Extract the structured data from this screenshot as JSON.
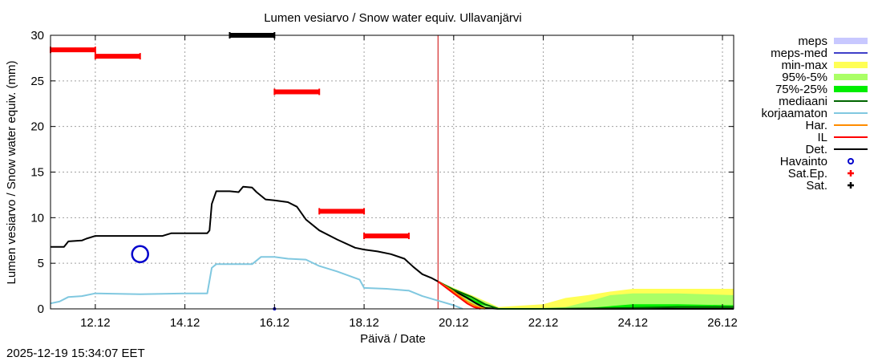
{
  "chart_data": {
    "type": "line",
    "title": "Lumen vesiarvo / Snow water equiv.  Ullavanjärvi",
    "ylabel": "Lumen vesiarvo / Snow water equiv. (mm)",
    "xlabel": "Päivä / Date",
    "timestamp": "2025-12-19 15:34:07 EET",
    "x_unit": "days since 2025-12-11 00:00",
    "xlim": [
      0,
      15.25
    ],
    "ylim": [
      0,
      30
    ],
    "yticks": [
      0,
      5,
      10,
      15,
      20,
      25,
      30
    ],
    "xticks": [
      {
        "x": 1,
        "label": "12.12"
      },
      {
        "x": 3,
        "label": "14.12"
      },
      {
        "x": 5,
        "label": "16.12"
      },
      {
        "x": 7,
        "label": "18.12"
      },
      {
        "x": 9,
        "label": "20.12"
      },
      {
        "x": 11,
        "label": "22.12"
      },
      {
        "x": 13,
        "label": "24.12"
      },
      {
        "x": 15,
        "label": "26.12"
      }
    ],
    "grid": true,
    "forecast_start_x": 8.65,
    "legend": [
      {
        "key": "meps",
        "label": "meps",
        "color": "#c8c8ff",
        "style": "band"
      },
      {
        "key": "meps_med",
        "label": "meps-med",
        "color": "#3f3fc8",
        "style": "line"
      },
      {
        "key": "minmax",
        "label": "min-max",
        "color": "#ffff55",
        "style": "band"
      },
      {
        "key": "p95_5",
        "label": "95%-5%",
        "color": "#aaff66",
        "style": "band"
      },
      {
        "key": "p75_25",
        "label": "75%-25%",
        "color": "#00ee00",
        "style": "band"
      },
      {
        "key": "median",
        "label": "mediaani",
        "color": "#006400",
        "style": "line"
      },
      {
        "key": "uncorrected",
        "label": "korjaamaton",
        "color": "#80c8e0",
        "style": "line"
      },
      {
        "key": "har",
        "label": "Har.",
        "color": "#ff8c00",
        "style": "line"
      },
      {
        "key": "il",
        "label": "IL",
        "color": "#ff0000",
        "style": "line"
      },
      {
        "key": "det",
        "label": "Det.",
        "color": "#000000",
        "style": "line"
      },
      {
        "key": "havainto",
        "label": "Havainto",
        "color": "#0000cc",
        "style": "circle"
      },
      {
        "key": "satep",
        "label": "Sat.Ep.",
        "color": "#ff0000",
        "style": "plus"
      },
      {
        "key": "sat",
        "label": "Sat.",
        "color": "#000000",
        "style": "plus"
      }
    ],
    "series": [
      {
        "name": "Det.",
        "color": "#000000",
        "x": [
          0,
          0.3,
          0.4,
          0.7,
          0.8,
          1.0,
          2.0,
          2.5,
          2.7,
          3.5,
          3.55,
          3.6,
          3.7,
          3.8,
          4.0,
          4.2,
          4.3,
          4.5,
          4.6,
          4.8,
          5.0,
          5.3,
          5.5,
          5.7,
          6.0,
          6.4,
          6.8,
          7.0,
          7.3,
          7.6,
          7.9,
          8.1,
          8.3,
          8.5,
          8.65,
          9.0,
          9.3,
          9.5,
          9.7,
          10.0,
          11.0,
          12.0,
          13.0,
          14.0,
          15.25
        ],
        "y": [
          6.8,
          6.8,
          7.4,
          7.5,
          7.7,
          8.0,
          8.0,
          8.0,
          8.3,
          8.3,
          8.6,
          11.5,
          12.9,
          12.9,
          12.9,
          12.8,
          13.4,
          13.3,
          12.8,
          12.0,
          11.9,
          11.7,
          11.2,
          9.8,
          8.6,
          7.6,
          6.7,
          6.5,
          6.3,
          6.0,
          5.5,
          4.6,
          3.8,
          3.4,
          3.0,
          2.0,
          1.2,
          0.6,
          0.1,
          0,
          0,
          0,
          0,
          0,
          0
        ]
      },
      {
        "name": "korjaamaton",
        "color": "#80c8e0",
        "x": [
          0,
          0.2,
          0.4,
          0.7,
          1.0,
          2.0,
          3.0,
          3.5,
          3.6,
          3.7,
          4.0,
          4.5,
          4.7,
          5.0,
          5.3,
          5.7,
          6.0,
          6.4,
          6.9,
          7.0,
          7.5,
          8.0,
          8.3,
          8.65,
          9.0,
          9.2
        ],
        "y": [
          0.6,
          0.8,
          1.3,
          1.4,
          1.7,
          1.6,
          1.7,
          1.7,
          4.5,
          4.9,
          4.9,
          4.9,
          5.7,
          5.7,
          5.5,
          5.4,
          4.7,
          4.1,
          3.2,
          2.3,
          2.2,
          2.0,
          1.4,
          0.9,
          0.4,
          0
        ]
      },
      {
        "name": "mediaani",
        "color": "#006400",
        "x": [
          8.65,
          9.0,
          9.4,
          9.7,
          10.0,
          11.0,
          12.0,
          13.0,
          14.0,
          15.25
        ],
        "y": [
          3.0,
          2.1,
          1.3,
          0.5,
          0,
          0,
          0.05,
          0.1,
          0.2,
          0.2
        ]
      },
      {
        "name": "Har.",
        "color": "#ff8c00",
        "x": [
          8.65,
          9.0,
          9.3,
          9.5,
          9.7
        ],
        "y": [
          3.0,
          1.9,
          0.8,
          0.3,
          0
        ]
      },
      {
        "name": "IL",
        "color": "#ff0000",
        "x": [
          8.65,
          9.0,
          9.3,
          9.45,
          9.6
        ],
        "y": [
          3.0,
          1.7,
          0.6,
          0.2,
          0
        ]
      }
    ],
    "bands": [
      {
        "name": "min-max",
        "color": "#ffff55",
        "x": [
          8.65,
          9.5,
          10.0,
          11.0,
          11.5,
          12.0,
          12.5,
          13.0,
          14.0,
          15.25
        ],
        "upper": [
          3.0,
          1.3,
          0.2,
          0.5,
          1.2,
          1.5,
          1.9,
          2.2,
          2.2,
          2.2
        ],
        "lower": [
          3.0,
          0.0,
          0,
          0,
          0,
          0,
          0,
          0,
          0,
          0
        ]
      },
      {
        "name": "95%-5%",
        "color": "#aaff66",
        "x": [
          8.65,
          9.5,
          10.0,
          11.0,
          11.5,
          12.0,
          12.5,
          13.0,
          14.0,
          15.25
        ],
        "upper": [
          3.0,
          1.2,
          0.1,
          0.1,
          0.2,
          0.8,
          1.5,
          1.7,
          1.7,
          1.5
        ],
        "lower": [
          3.0,
          0.3,
          0,
          0,
          0,
          0,
          0,
          0,
          0,
          0
        ]
      },
      {
        "name": "75%-25%",
        "color": "#00ee00",
        "x": [
          8.65,
          9.5,
          10.0,
          11.0,
          11.5,
          12.0,
          12.5,
          13.0,
          14.0,
          15.25
        ],
        "upper": [
          3.0,
          0.9,
          0.05,
          0,
          0.05,
          0.1,
          0.3,
          0.5,
          0.5,
          0.4
        ],
        "lower": [
          3.0,
          0.6,
          0,
          0,
          0,
          0,
          0,
          0,
          0,
          0
        ]
      }
    ],
    "sat_ep": [
      {
        "x0": 0.0,
        "x1": 1.0,
        "y": 28.4
      },
      {
        "x0": 1.0,
        "x1": 2.0,
        "y": 27.7
      },
      {
        "x0": 5.0,
        "x1": 6.0,
        "y": 23.8
      },
      {
        "x0": 6.0,
        "x1": 7.0,
        "y": 10.7
      },
      {
        "x0": 7.0,
        "x1": 8.0,
        "y": 8.0
      }
    ],
    "sat": [
      {
        "x0": 4.0,
        "x1": 5.0,
        "y": 30.0
      }
    ],
    "observations": [
      {
        "x": 2.0,
        "y": 6.0
      }
    ],
    "extra_points": [
      {
        "x": 5.0,
        "y": 0.0
      }
    ]
  }
}
